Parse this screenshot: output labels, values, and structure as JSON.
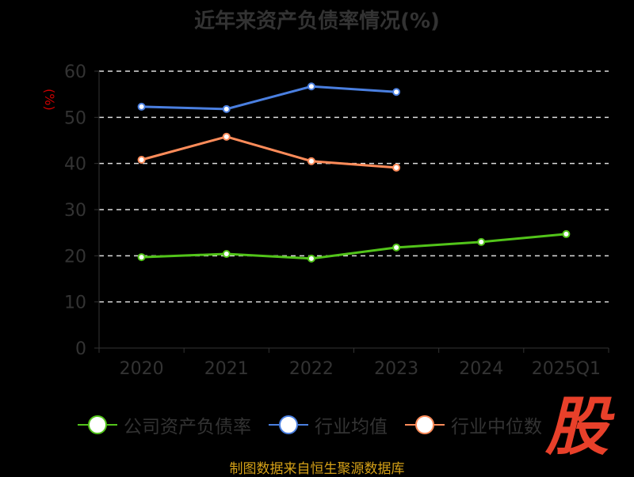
{
  "chart_data": {
    "type": "line",
    "title": "近年来资产负债率情况(%)",
    "ylabel": "(%)",
    "categories": [
      "2020",
      "2021",
      "2022",
      "2023",
      "2024",
      "2025Q1"
    ],
    "ylim": [
      0,
      60
    ],
    "yticks": [
      0,
      10,
      20,
      30,
      40,
      50,
      60
    ],
    "grid": true,
    "legend_position": "bottom",
    "series": [
      {
        "name": "公司资产负债率",
        "color": "#52c41a",
        "values": [
          19.7,
          20.4,
          19.4,
          21.8,
          23.0,
          24.7
        ]
      },
      {
        "name": "行业均值",
        "color": "#4a7fe0",
        "values": [
          52.3,
          51.8,
          56.7,
          55.5,
          null,
          null
        ]
      },
      {
        "name": "行业中位数",
        "color": "#ff8c5a",
        "values": [
          40.8,
          45.8,
          40.5,
          39.1,
          null,
          null
        ]
      }
    ]
  },
  "source": "制图数据来自恒生聚源数据库",
  "logo_text": "股"
}
